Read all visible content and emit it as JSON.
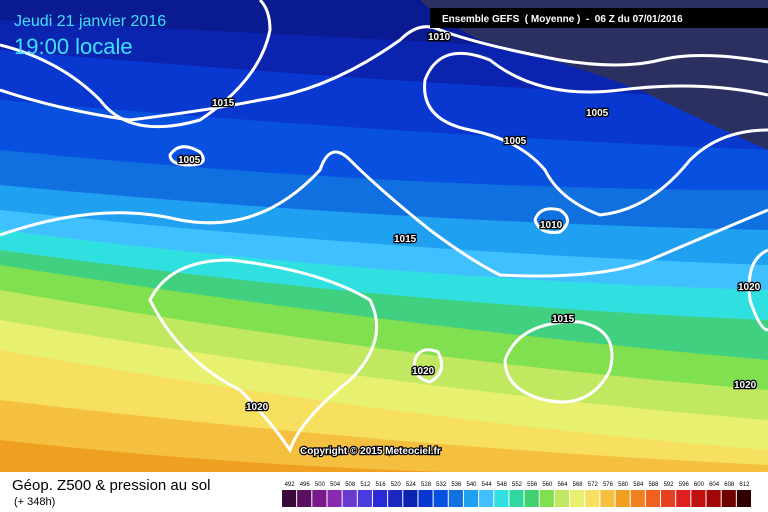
{
  "header": {
    "date": "Jeudi 21 janvier 2016",
    "time": "19:00 locale",
    "run": "Ensemble GEFS  ( Moyenne )  -  06 Z du 07/01/2016"
  },
  "isobar_labels": [
    "1010",
    "1015",
    "1005",
    "1005",
    "1005",
    "1010",
    "1015",
    "1015",
    "1020",
    "1020",
    "1020",
    "1020"
  ],
  "copyright": "Copyright © 2015 Meteociel.fr",
  "footer": {
    "title": "Géop. Z500 & pression au sol",
    "lead": "(+ 348h)"
  },
  "legend": {
    "values": [
      492,
      496,
      500,
      504,
      508,
      512,
      516,
      520,
      524,
      528,
      532,
      536,
      540,
      544,
      548,
      552,
      556,
      560,
      564,
      568,
      572,
      576,
      580,
      584,
      588,
      592,
      596,
      600,
      604,
      608,
      612
    ],
    "colors": [
      "#3a0a3a",
      "#5a1060",
      "#7a1a8a",
      "#8a2ab0",
      "#6a3ad0",
      "#4a3ae0",
      "#2a2ad8",
      "#1a28c0",
      "#0a24b0",
      "#0838d0",
      "#0850e0",
      "#1070e0",
      "#20a0f0",
      "#40c0ff",
      "#30e0e0",
      "#30d8a0",
      "#40d070",
      "#80e050",
      "#c0e860",
      "#e8f070",
      "#f7e060",
      "#f5c040",
      "#f0a020",
      "#f08020",
      "#f06020",
      "#e84020",
      "#e02020",
      "#c01010",
      "#a00808",
      "#700000",
      "#300000"
    ]
  }
}
